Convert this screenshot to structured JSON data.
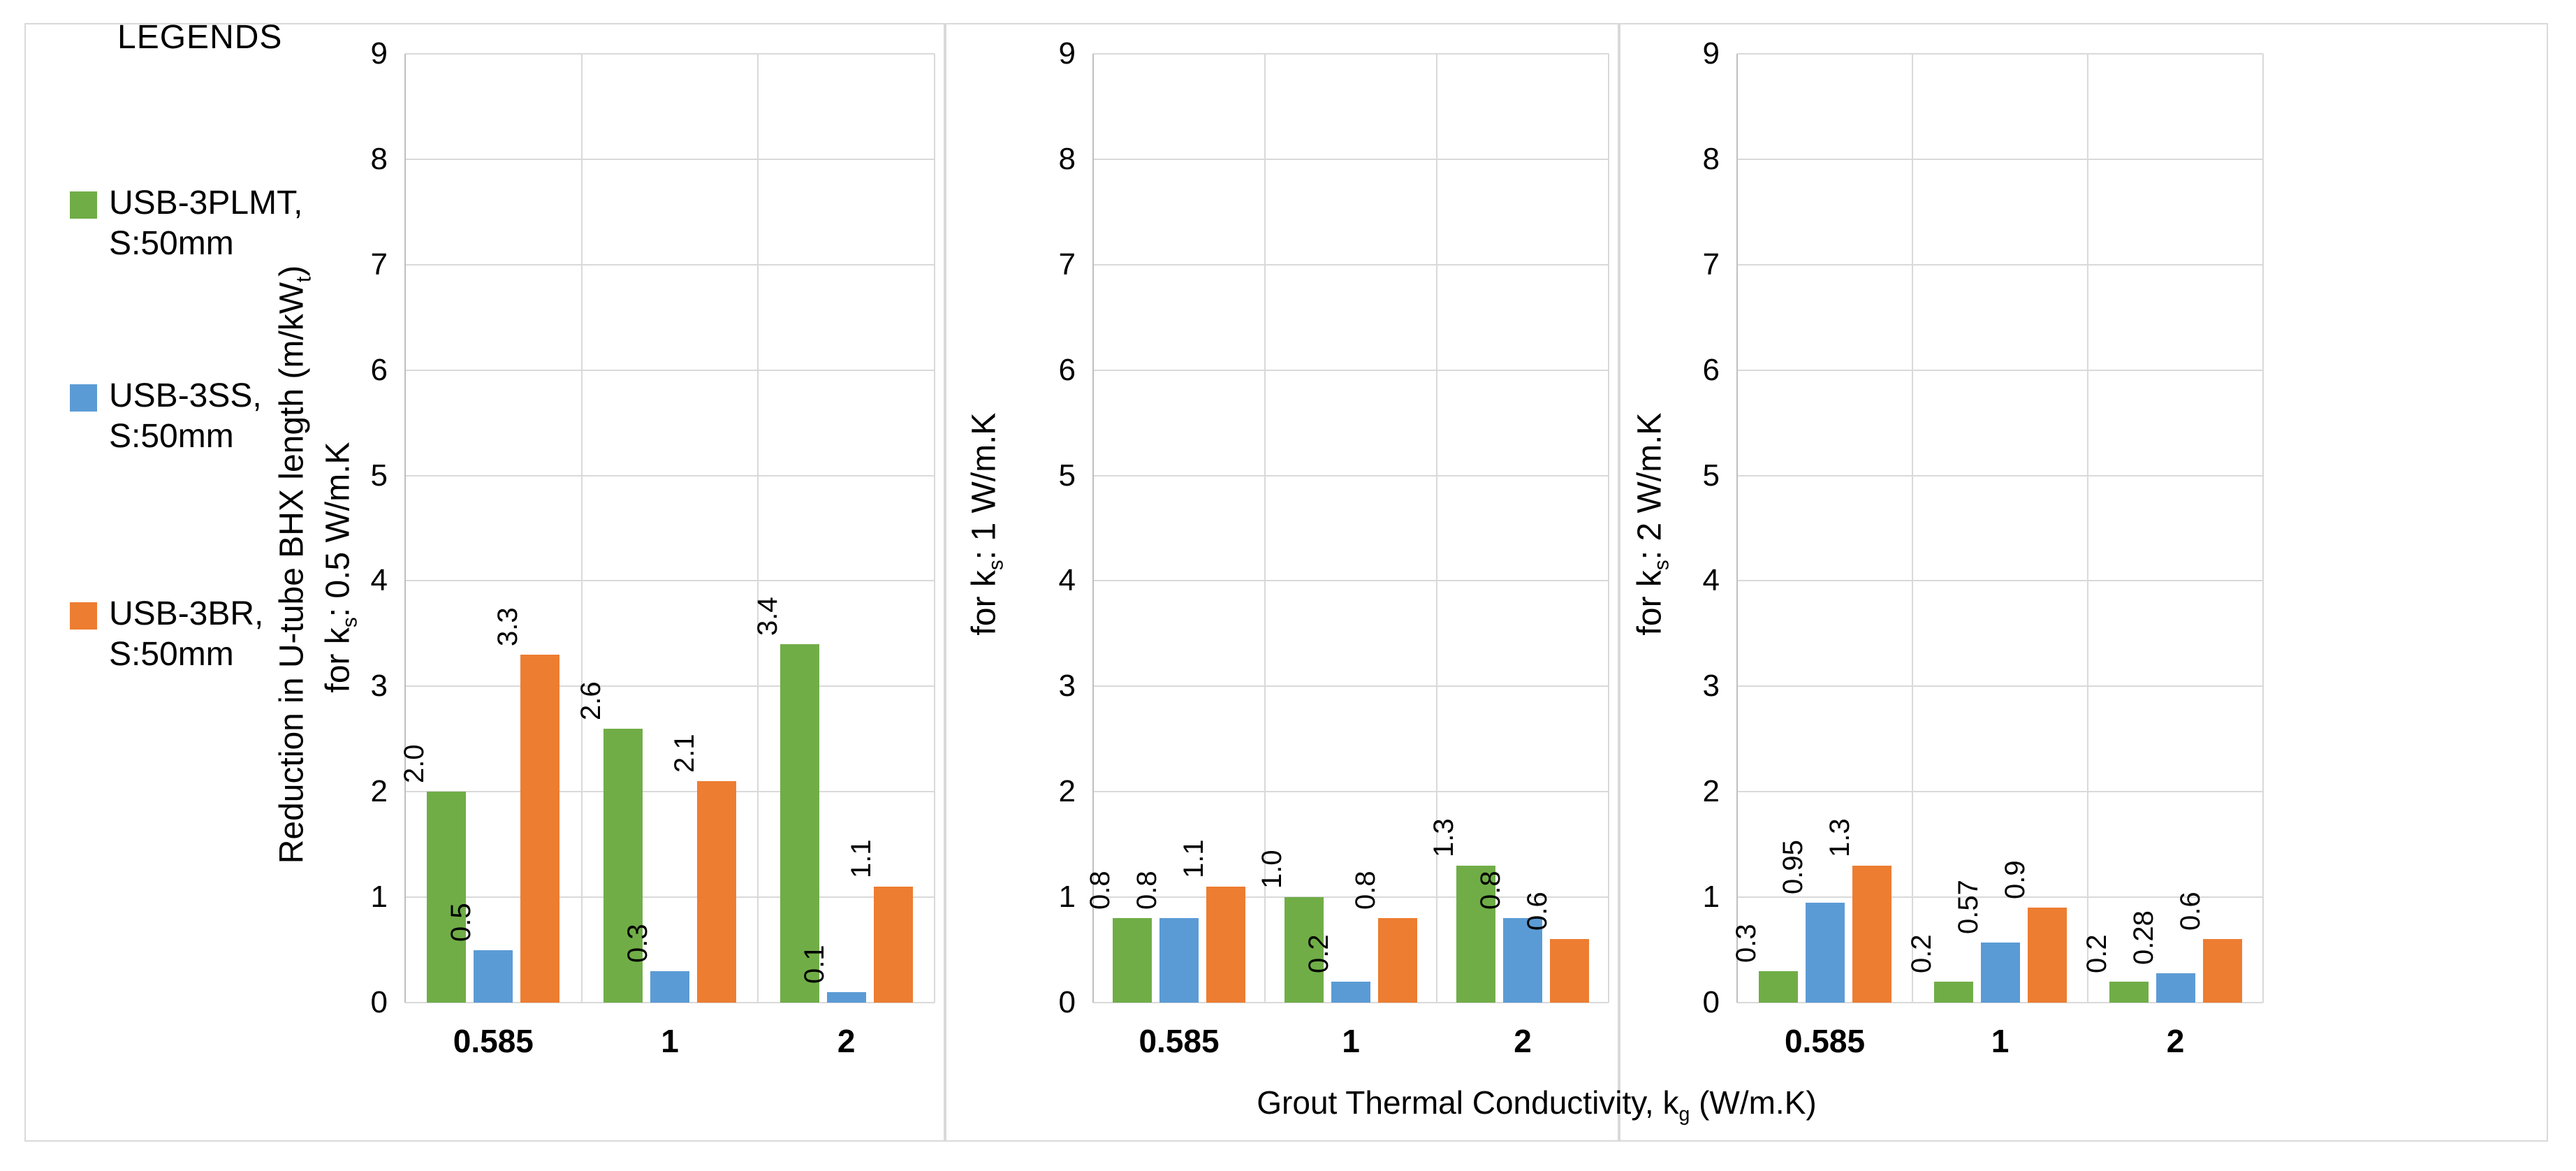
{
  "figure": {
    "legend": {
      "title": "LEGENDS",
      "items": [
        {
          "label_line1": "USB-3PLMT,",
          "label_line2": "S:50mm",
          "color": "#70AD47"
        },
        {
          "label_line1": "USB-3SS,",
          "label_line2": "S:50mm",
          "color": "#5B9BD5"
        },
        {
          "label_line1": "USB-3BR,",
          "label_line2": "S:50mm",
          "color": "#ED7D31"
        }
      ]
    },
    "x_axis_title": {
      "text": "Grout Thermal Conductivity,  kg (W/m.K)",
      "parts": [
        {
          "t": "Grout Thermal Conductivity,  k"
        },
        {
          "t": "g",
          "sub": true
        },
        {
          "t": " (W/m.K)"
        }
      ]
    },
    "colors": {
      "green": "#70AD47",
      "blue": "#5B9BD5",
      "orange": "#ED7D31",
      "gridline": "#D9D9D9",
      "axis_line": "#BFBFBF",
      "panel_border": "#D9D9D9",
      "text": "#000000"
    }
  },
  "chart_data": [
    {
      "type": "bar",
      "ylabel_text": "Reduction in U-tube BHX length (m/kWt) for ks: 0.5 W/m.K",
      "ylabel_lines": [
        [
          {
            "t": "Reduction in U-tube BHX length (m/kW"
          },
          {
            "t": "t",
            "sub": true
          },
          {
            "t": ")"
          }
        ],
        [
          {
            "t": "for k"
          },
          {
            "t": "s",
            "sub": true
          },
          {
            "t": ": 0.5 W/m.K"
          }
        ]
      ],
      "categories": [
        "0.585",
        "1",
        "2"
      ],
      "ylim": [
        0,
        9
      ],
      "ytick_step": 1,
      "grid": true,
      "legend_position": "left",
      "series": [
        {
          "name": "USB-3PLMT, S:50mm",
          "color": "#70AD47",
          "values": [
            2.0,
            2.6,
            3.4
          ],
          "labels": [
            "2.0",
            "2.6",
            "3.4"
          ]
        },
        {
          "name": "USB-3SS, S:50mm",
          "color": "#5B9BD5",
          "values": [
            0.5,
            0.3,
            0.1
          ],
          "labels": [
            "0.5",
            "0.3",
            "0.1"
          ]
        },
        {
          "name": "USB-3BR, S:50mm",
          "color": "#ED7D31",
          "values": [
            3.3,
            2.1,
            1.1
          ],
          "labels": [
            "3.3",
            "2.1",
            "1.1"
          ]
        }
      ]
    },
    {
      "type": "bar",
      "ylabel_text": "for ks: 1 W/m.K",
      "ylabel_lines": [
        [
          {
            "t": "for k"
          },
          {
            "t": "s",
            "sub": true
          },
          {
            "t": ": 1 W/m.K"
          }
        ]
      ],
      "categories": [
        "0.585",
        "1",
        "2"
      ],
      "ylim": [
        0,
        9
      ],
      "ytick_step": 1,
      "grid": true,
      "series": [
        {
          "name": "USB-3PLMT, S:50mm",
          "color": "#70AD47",
          "values": [
            0.8,
            1.0,
            1.3
          ],
          "labels": [
            "0.8",
            "1.0",
            "1.3"
          ]
        },
        {
          "name": "USB-3SS, S:50mm",
          "color": "#5B9BD5",
          "values": [
            0.8,
            0.2,
            0.8
          ],
          "labels": [
            "0.8",
            "0.2",
            "0.8"
          ]
        },
        {
          "name": "USB-3BR, S:50mm",
          "color": "#ED7D31",
          "values": [
            1.1,
            0.8,
            0.6
          ],
          "labels": [
            "1.1",
            "0.8",
            "0.6"
          ]
        }
      ]
    },
    {
      "type": "bar",
      "ylabel_text": "for ks: 2 W/m.K",
      "ylabel_lines": [
        [
          {
            "t": "for k"
          },
          {
            "t": "s",
            "sub": true
          },
          {
            "t": ": 2 W/m.K"
          }
        ]
      ],
      "categories": [
        "0.585",
        "1",
        "2"
      ],
      "ylim": [
        0,
        9
      ],
      "ytick_step": 1,
      "grid": true,
      "series": [
        {
          "name": "USB-3PLMT, S:50mm",
          "color": "#70AD47",
          "values": [
            0.3,
            0.2,
            0.2
          ],
          "labels": [
            "0.3",
            "0.2",
            "0.2"
          ]
        },
        {
          "name": "USB-3SS, S:50mm",
          "color": "#5B9BD5",
          "values": [
            0.95,
            0.57,
            0.28
          ],
          "labels": [
            "0.95",
            "0.57",
            "0.28"
          ]
        },
        {
          "name": "USB-3BR, S:50mm",
          "color": "#ED7D31",
          "values": [
            1.3,
            0.9,
            0.6
          ],
          "labels": [
            "1.3",
            "0.9",
            "0.6"
          ]
        }
      ]
    }
  ]
}
